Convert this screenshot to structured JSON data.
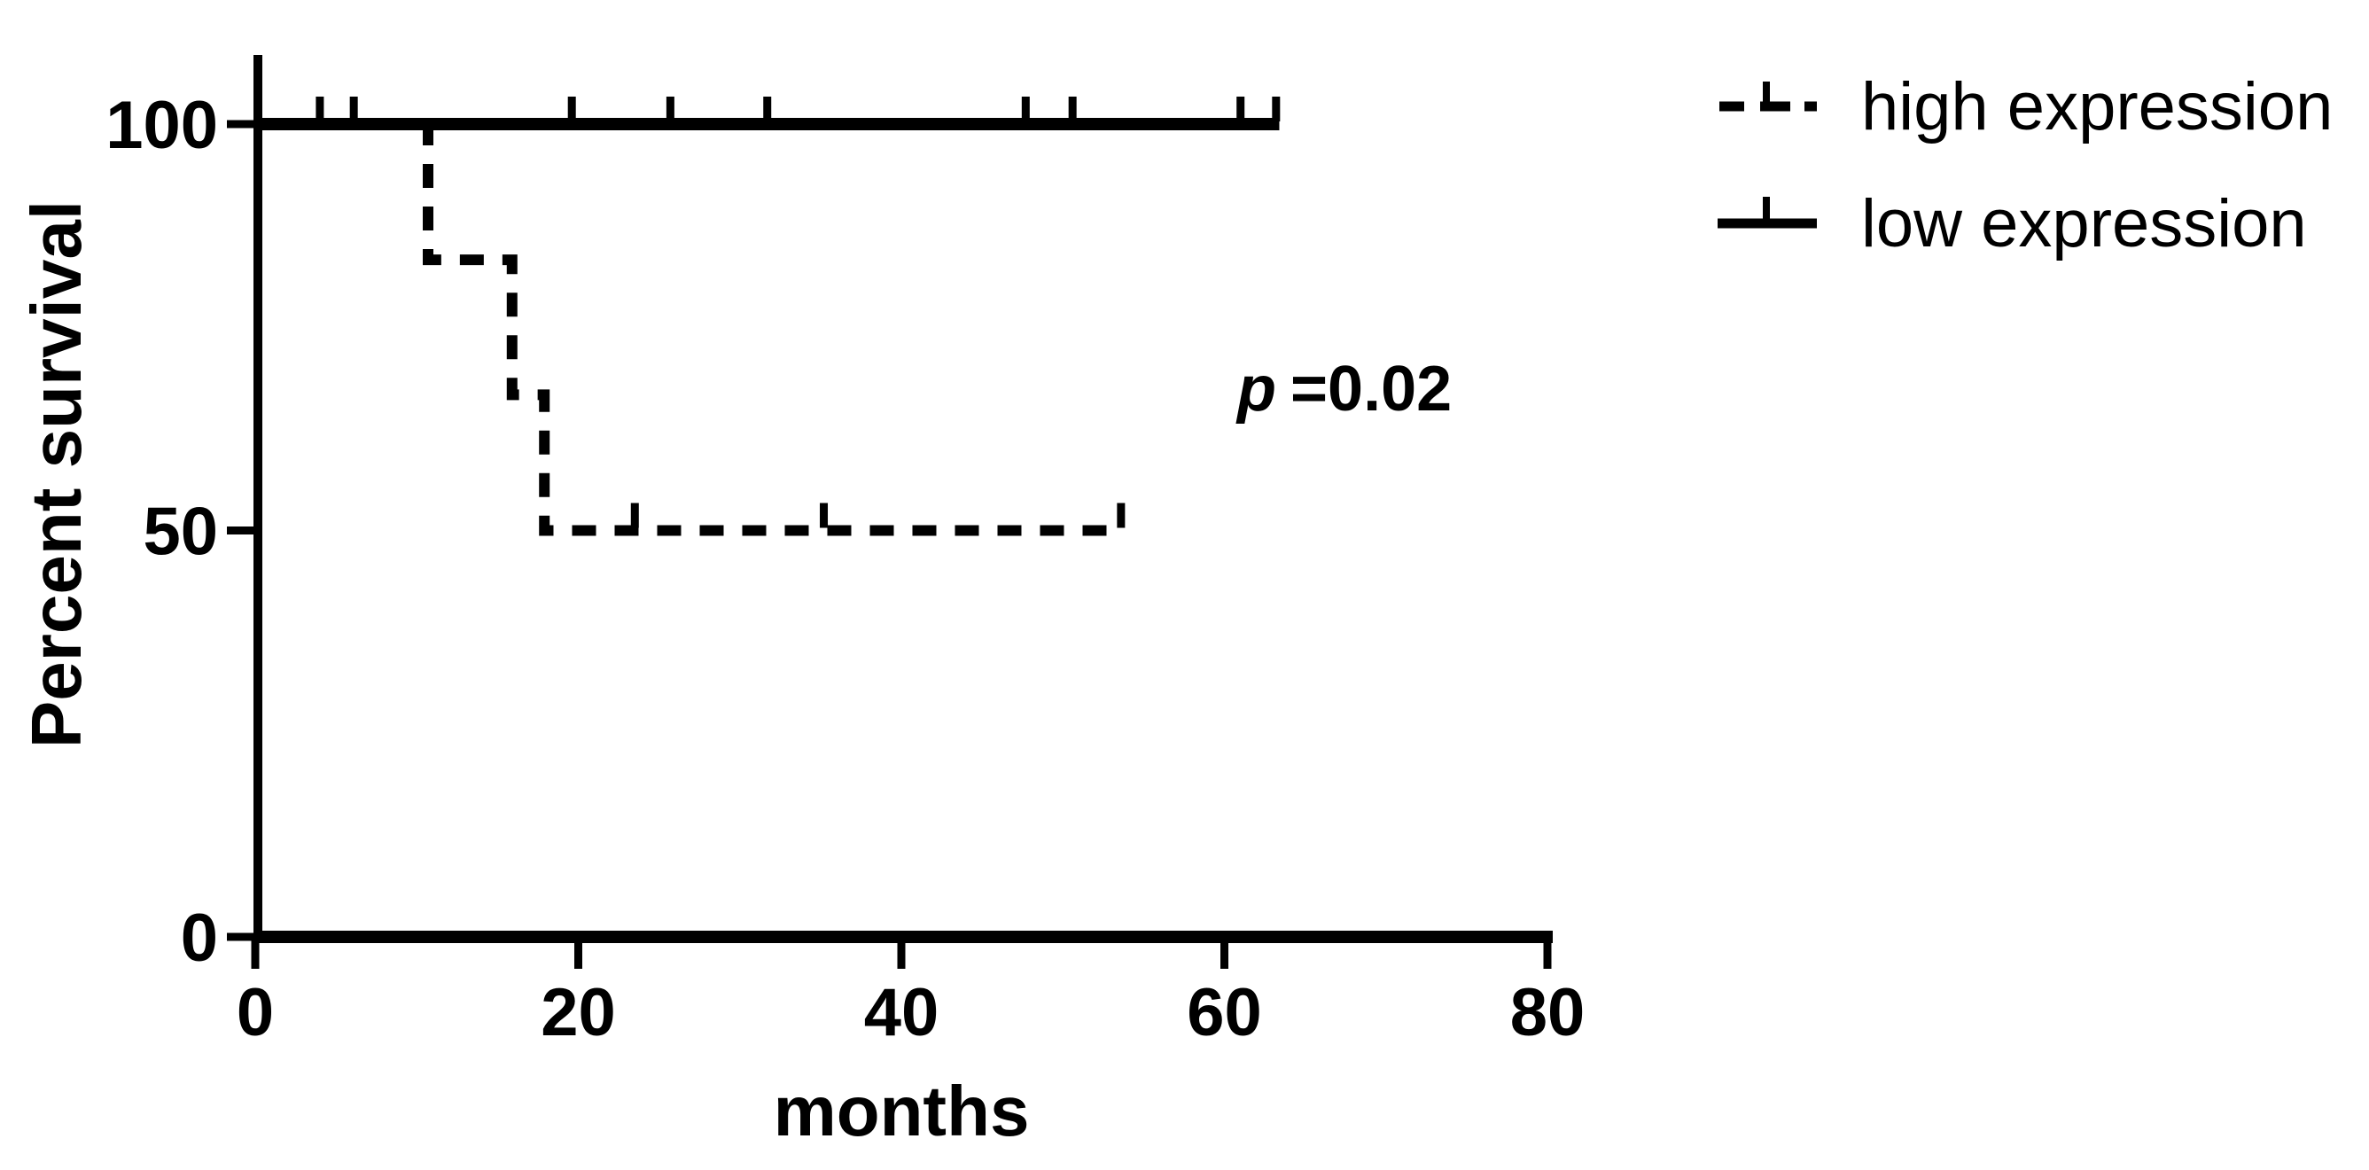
{
  "figure": {
    "background_color": "#ffffff",
    "ink_color": "#000000"
  },
  "chart_data": {
    "type": "line",
    "subtype": "kaplan-meier-step",
    "title": "",
    "xlabel": "months",
    "ylabel": "Percent survival",
    "xlim": [
      0,
      80
    ],
    "ylim": [
      0,
      100
    ],
    "xticks": [
      0,
      20,
      40,
      60,
      80
    ],
    "yticks": [
      0,
      50,
      100
    ],
    "grid": false,
    "legend_position": "top-right",
    "annotation": {
      "p_symbol": "p",
      "p_value_text": "=0.02"
    },
    "series": [
      {
        "name": "high expression",
        "line_style": "dashed",
        "color": "#000000",
        "steps": [
          [
            0,
            100
          ],
          [
            10.7,
            100
          ],
          [
            10.7,
            83.3
          ],
          [
            15.9,
            83.3
          ],
          [
            15.9,
            66.7
          ],
          [
            17.9,
            66.7
          ],
          [
            17.9,
            50
          ],
          [
            53.8,
            50
          ]
        ],
        "censor_marks": [
          [
            23.5,
            50
          ],
          [
            35.2,
            50
          ],
          [
            53.6,
            50
          ]
        ]
      },
      {
        "name": "low expression",
        "line_style": "solid",
        "color": "#000000",
        "steps": [
          [
            0,
            100
          ],
          [
            63.4,
            100
          ]
        ],
        "censor_marks": [
          [
            4,
            100
          ],
          [
            6.1,
            100
          ],
          [
            19.6,
            100
          ],
          [
            25.7,
            100
          ],
          [
            31.7,
            100
          ],
          [
            47.7,
            100
          ],
          [
            50.6,
            100
          ],
          [
            61,
            100
          ],
          [
            63.2,
            100
          ]
        ]
      }
    ]
  },
  "legend": {
    "items": [
      {
        "label": "high expression",
        "style": "dashed"
      },
      {
        "label": "low expression",
        "style": "solid"
      }
    ]
  }
}
